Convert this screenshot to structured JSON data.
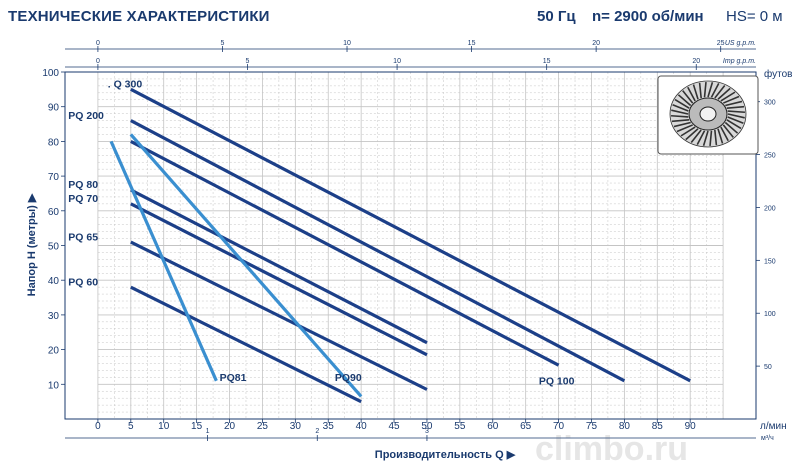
{
  "header": {
    "title": "ТЕХНИЧЕСКИЕ ХАРАКТЕРИСТИКИ",
    "frequency": "50 Гц",
    "speed": "n= 2900 об/мин",
    "hs": "HS= 0 м"
  },
  "watermark": "climbo.ru",
  "colors": {
    "dark_curve": "#1c3f88",
    "light_curve": "#3a8fd0",
    "text": "#1a3a6e",
    "grid": "#c4c4c4"
  },
  "chart_data": {
    "type": "line",
    "xlabel": "Производительность Q ▶",
    "ylabel": "Напор H (метры) ▶",
    "xlim": [
      -5,
      100
    ],
    "ylim": [
      0,
      100
    ],
    "grid": true,
    "primary_x_unit": "л/мин",
    "secondary_x_unit": "м³/ч",
    "right_y_unit": "футов",
    "x_ticks": [
      0,
      5,
      10,
      15,
      20,
      25,
      30,
      35,
      40,
      45,
      50,
      55,
      60,
      65,
      70,
      75,
      80,
      85,
      90
    ],
    "y_ticks": [
      10,
      20,
      30,
      40,
      50,
      60,
      70,
      80,
      90,
      100
    ],
    "m3h_ticks": [
      1,
      2,
      3
    ],
    "feet_ticks": [
      50,
      100,
      150,
      200,
      250,
      300
    ],
    "us_gpm": {
      "unit": "US g.p.m.",
      "ticks": [
        0,
        5,
        10,
        15,
        20,
        25
      ]
    },
    "imp_gpm": {
      "unit": "Imp g.p.m.",
      "ticks": [
        0,
        5,
        10,
        15,
        20
      ]
    },
    "series": [
      {
        "name": "Q 300",
        "style": "dark",
        "x": [
          5,
          90
        ],
        "y": [
          95,
          11
        ]
      },
      {
        "name": "PQ 200",
        "style": "dark",
        "x": [
          5,
          80
        ],
        "y": [
          86,
          11
        ]
      },
      {
        "name": "PQ 100",
        "style": "dark",
        "x": [
          5,
          70
        ],
        "y": [
          80,
          15.5
        ]
      },
      {
        "name": "PQ 80",
        "style": "dark",
        "x": [
          5,
          50
        ],
        "y": [
          66,
          22
        ]
      },
      {
        "name": "PQ 70",
        "style": "dark",
        "x": [
          5,
          50
        ],
        "y": [
          62,
          18.5
        ]
      },
      {
        "name": "PQ 65",
        "style": "dark",
        "x": [
          5,
          50
        ],
        "y": [
          51,
          8.5
        ]
      },
      {
        "name": "PQ 60",
        "style": "dark",
        "x": [
          5,
          40
        ],
        "y": [
          38,
          5
        ]
      },
      {
        "name": "PQ81",
        "style": "light",
        "x": [
          2,
          18
        ],
        "y": [
          80,
          11
        ]
      },
      {
        "name": "PQ90",
        "style": "light",
        "x": [
          5,
          40
        ],
        "y": [
          82,
          6.5
        ]
      }
    ],
    "curve_labels": [
      {
        "text": "Q 300",
        "at_x": 1.5,
        "at_y": 95.5,
        "pre": ". "
      },
      {
        "text": "PQ 200",
        "at_x": -4.5,
        "at_y": 86.5
      },
      {
        "text": "PQ 100",
        "at_x": 67,
        "at_y": 10
      },
      {
        "text": "PQ 80",
        "at_x": -4.5,
        "at_y": 66.5
      },
      {
        "text": "PQ 70",
        "at_x": -4.5,
        "at_y": 62.5
      },
      {
        "text": "PQ 65",
        "at_x": -4.5,
        "at_y": 51.5
      },
      {
        "text": "PQ 60",
        "at_x": -4.5,
        "at_y": 38.5
      },
      {
        "text": "PQ81",
        "at_x": 18.5,
        "at_y": 11
      },
      {
        "text": "PQ90",
        "at_x": 36,
        "at_y": 11
      }
    ]
  }
}
